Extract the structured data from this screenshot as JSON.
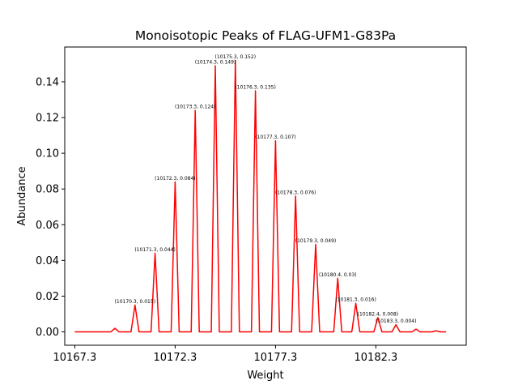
{
  "chart_data": {
    "type": "line",
    "title": "Monoisotopic Peaks of FLAG-UFM1-G83Pa",
    "xlabel": "Weight",
    "ylabel": "Abundance",
    "xlim": [
      10166.8,
      10186.8
    ],
    "ylim": [
      -0.0075,
      0.1595
    ],
    "x_ticks": [
      10167.3,
      10172.3,
      10177.3,
      10182.3
    ],
    "x_tick_labels": [
      "10167.3",
      "10172.3",
      "10177.3",
      "10182.3"
    ],
    "y_ticks": [
      0.0,
      0.02,
      0.04,
      0.06,
      0.08,
      0.1,
      0.12,
      0.14
    ],
    "y_tick_labels": [
      "0.00",
      "0.02",
      "0.04",
      "0.06",
      "0.08",
      "0.10",
      "0.12",
      "0.14"
    ],
    "grid": false,
    "series": [
      {
        "color": "#ff0000",
        "peaks": [
          {
            "x": 10169.3,
            "y": 0.002
          },
          {
            "x": 10170.3,
            "y": 0.015,
            "label": "(10170.3, 0.015)"
          },
          {
            "x": 10171.3,
            "y": 0.044,
            "label": "(10171.3, 0.044)"
          },
          {
            "x": 10172.3,
            "y": 0.084,
            "label": "(10172.3, 0.084)"
          },
          {
            "x": 10173.3,
            "y": 0.124,
            "label": "(10173.3, 0.124)"
          },
          {
            "x": 10174.3,
            "y": 0.149,
            "label": "(10174.3, 0.149)"
          },
          {
            "x": 10175.3,
            "y": 0.152,
            "label": "(10175.3, 0.152)"
          },
          {
            "x": 10176.3,
            "y": 0.135,
            "label": "(10176.3, 0.135)"
          },
          {
            "x": 10177.3,
            "y": 0.107,
            "label": "(10177.3, 0.107)"
          },
          {
            "x": 10178.3,
            "y": 0.076,
            "label": "(10178.3, 0.076)"
          },
          {
            "x": 10179.3,
            "y": 0.049,
            "label": "(10179.3, 0.049)"
          },
          {
            "x": 10180.4,
            "y": 0.03,
            "label": "(10180.4, 0.03)"
          },
          {
            "x": 10181.3,
            "y": 0.016,
            "label": "(10181.3, 0.016)"
          },
          {
            "x": 10182.4,
            "y": 0.008,
            "label": "(10182.4, 0.008)"
          },
          {
            "x": 10183.3,
            "y": 0.004,
            "label": "(10183.3, 0.004)"
          },
          {
            "x": 10184.3,
            "y": 0.0015
          },
          {
            "x": 10185.3,
            "y": 0.0006
          }
        ]
      }
    ]
  }
}
